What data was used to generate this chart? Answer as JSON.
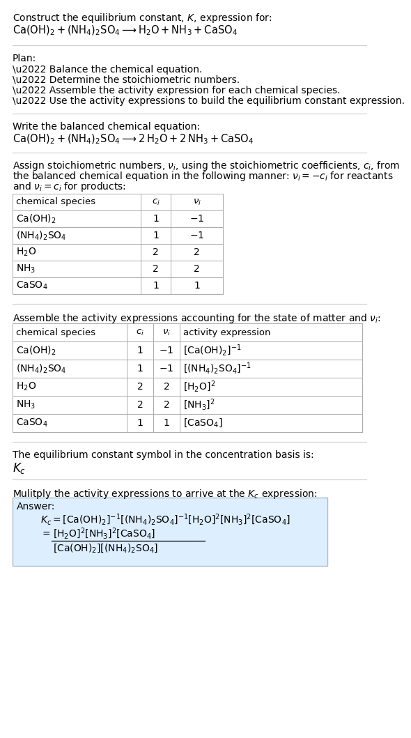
{
  "bg_color": "#ffffff",
  "text_color": "#000000",
  "title_line1": "Construct the equilibrium constant, $K$, expression for:",
  "title_line2": "$\\mathrm{Ca(OH)_2 + (NH_4)_2SO_4 \\longrightarrow H_2O + NH_3 + CaSO_4}$",
  "plan_header": "Plan:",
  "plan_items": [
    "\\u2022 Balance the chemical equation.",
    "\\u2022 Determine the stoichiometric numbers.",
    "\\u2022 Assemble the activity expression for each chemical species.",
    "\\u2022 Use the activity expressions to build the equilibrium constant expression."
  ],
  "balanced_header": "Write the balanced chemical equation:",
  "balanced_eq": "$\\mathrm{Ca(OH)_2 + (NH_4)_2SO_4 \\longrightarrow 2\\,H_2O + 2\\,NH_3 + CaSO_4}$",
  "stoich_lines": [
    "Assign stoichiometric numbers, $\\nu_i$, using the stoichiometric coefficients, $c_i$, from",
    "the balanced chemical equation in the following manner: $\\nu_i = -c_i$ for reactants",
    "and $\\nu_i = c_i$ for products:"
  ],
  "table1_cols": [
    "chemical species",
    "$c_i$",
    "$\\nu_i$"
  ],
  "table1_rows": [
    [
      "$\\mathrm{Ca(OH)_2}$",
      "1",
      "$-1$"
    ],
    [
      "$\\mathrm{(NH_4)_2SO_4}$",
      "1",
      "$-1$"
    ],
    [
      "$\\mathrm{H_2O}$",
      "2",
      "2"
    ],
    [
      "$\\mathrm{NH_3}$",
      "2",
      "2"
    ],
    [
      "$\\mathrm{CaSO_4}$",
      "1",
      "1"
    ]
  ],
  "activity_header": "Assemble the activity expressions accounting for the state of matter and $\\nu_i$:",
  "table2_cols": [
    "chemical species",
    "$c_i$",
    "$\\nu_i$",
    "activity expression"
  ],
  "table2_rows": [
    [
      "$\\mathrm{Ca(OH)_2}$",
      "1",
      "$-1$",
      "$[\\mathrm{Ca(OH)_2}]^{-1}$"
    ],
    [
      "$\\mathrm{(NH_4)_2SO_4}$",
      "1",
      "$-1$",
      "$[(\\mathrm{NH_4})_2\\mathrm{SO_4}]^{-1}$"
    ],
    [
      "$\\mathrm{H_2O}$",
      "2",
      "2",
      "$[\\mathrm{H_2O}]^2$"
    ],
    [
      "$\\mathrm{NH_3}$",
      "2",
      "2",
      "$[\\mathrm{NH_3}]^2$"
    ],
    [
      "$\\mathrm{CaSO_4}$",
      "1",
      "1",
      "$[\\mathrm{CaSO_4}]$"
    ]
  ],
  "kc_header": "The equilibrium constant symbol in the concentration basis is:",
  "kc_symbol": "$K_c$",
  "multiply_header": "Mulitply the activity expressions to arrive at the $K_c$ expression:",
  "answer_label": "Answer:",
  "answer_line1": "$K_c = [\\mathrm{Ca(OH)_2}]^{-1}[(\\mathrm{NH_4})_2\\mathrm{SO_4}]^{-1}[\\mathrm{H_2O}]^2[\\mathrm{NH_3}]^2[\\mathrm{CaSO_4}]$",
  "answer_eq_lhs": "$= $",
  "answer_num": "$[\\mathrm{H_2O}]^2[\\mathrm{NH_3}]^2[\\mathrm{CaSO_4}]$",
  "answer_den": "$[\\mathrm{Ca(OH)_2}][(\\mathrm{NH_4})_2\\mathrm{SO_4}]$",
  "font_size": 10.0,
  "table_font_size": 10.0,
  "sep_color": "#cccccc",
  "table_line_color": "#aaaaaa",
  "answer_box_color": "#ddeeff"
}
